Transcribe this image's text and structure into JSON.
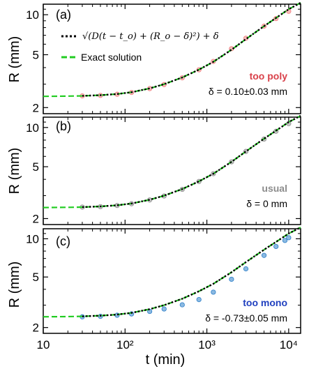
{
  "chart_data": [
    {
      "type": "scatter",
      "panel_label": "(a)",
      "ylabel": "R (mm)",
      "xscale": "log",
      "yscale": "log",
      "xlim": [
        10,
        14000
      ],
      "ylim": [
        1.8,
        12
      ],
      "yticks": [
        2,
        5,
        10
      ],
      "legend": {
        "placement": "top-left",
        "fit_label": "√(D(t − t_o) + (R_o − δ)²) + δ",
        "exact_label": "Exact solution"
      },
      "annotation_title": "too poly",
      "annotation_title_color": "#d9414a",
      "annotation_value": "δ = 0.10±0.03 mm",
      "marker_color": "#f08080",
      "series": [
        {
          "values": [
            [
              30,
              2.45
            ],
            [
              50,
              2.47
            ],
            [
              80,
              2.52
            ],
            [
              120,
              2.6
            ],
            [
              200,
              2.78
            ],
            [
              300,
              2.98
            ],
            [
              500,
              3.35
            ],
            [
              800,
              3.85
            ],
            [
              1200,
              4.45
            ],
            [
              2000,
              5.55
            ],
            [
              3000,
              6.65
            ],
            [
              5000,
              8.2
            ],
            [
              7000,
              9.35
            ],
            [
              10000,
              10.6
            ]
          ]
        }
      ],
      "fit_curve": {
        "x": [
          30,
          50,
          80,
          120,
          200,
          300,
          500,
          800,
          1200,
          2000,
          3000,
          5000,
          8000,
          10000,
          14000
        ],
        "y": [
          2.45,
          2.48,
          2.53,
          2.61,
          2.79,
          3.0,
          3.37,
          3.86,
          4.42,
          5.45,
          6.55,
          8.2,
          10.0,
          11.0,
          12.3
        ]
      },
      "exact_curve": {
        "x": [
          10,
          20,
          30,
          50,
          80,
          120,
          200,
          300,
          500,
          800,
          1200,
          2000,
          3000,
          5000,
          8000,
          10000,
          14000
        ],
        "y": [
          2.43,
          2.44,
          2.45,
          2.48,
          2.53,
          2.61,
          2.79,
          3.0,
          3.37,
          3.86,
          4.42,
          5.45,
          6.55,
          8.2,
          10.0,
          11.0,
          12.3
        ]
      }
    },
    {
      "type": "scatter",
      "panel_label": "(b)",
      "ylabel": "R (mm)",
      "xscale": "log",
      "yscale": "log",
      "xlim": [
        10,
        14000
      ],
      "ylim": [
        1.8,
        12
      ],
      "yticks": [
        2,
        5,
        10
      ],
      "annotation_title": "usual",
      "annotation_title_color": "#8c8c8c",
      "annotation_value": "δ = 0 mm",
      "marker_color": "#909090",
      "series": [
        {
          "values": [
            [
              30,
              2.45
            ],
            [
              50,
              2.47
            ],
            [
              80,
              2.52
            ],
            [
              120,
              2.6
            ],
            [
              200,
              2.78
            ],
            [
              300,
              2.98
            ],
            [
              500,
              3.35
            ],
            [
              800,
              3.85
            ],
            [
              1200,
              4.42
            ],
            [
              2000,
              5.45
            ],
            [
              3000,
              6.55
            ],
            [
              5000,
              8.15
            ],
            [
              7000,
              9.35
            ],
            [
              10000,
              10.7
            ]
          ]
        }
      ],
      "fit_curve": {
        "x": [
          30,
          50,
          80,
          120,
          200,
          300,
          500,
          800,
          1200,
          2000,
          3000,
          5000,
          8000,
          10000,
          14000
        ],
        "y": [
          2.45,
          2.48,
          2.53,
          2.61,
          2.79,
          3.0,
          3.37,
          3.86,
          4.42,
          5.45,
          6.55,
          8.2,
          10.0,
          11.0,
          12.3
        ]
      },
      "exact_curve": {
        "x": [
          10,
          20,
          30,
          50,
          80,
          120,
          200,
          300,
          500,
          800,
          1200,
          2000,
          3000,
          5000,
          8000,
          10000,
          14000
        ],
        "y": [
          2.43,
          2.44,
          2.45,
          2.48,
          2.53,
          2.61,
          2.79,
          3.0,
          3.37,
          3.86,
          4.42,
          5.45,
          6.55,
          8.2,
          10.0,
          11.0,
          12.3
        ]
      }
    },
    {
      "type": "scatter",
      "panel_label": "(c)",
      "ylabel": "R (mm)",
      "xlabel": "t (min)",
      "xscale": "log",
      "yscale": "log",
      "xlim": [
        10,
        14000
      ],
      "ylim": [
        1.8,
        12
      ],
      "yticks": [
        2,
        5,
        10
      ],
      "xticks": [
        "10",
        "10²",
        "10³",
        "10⁴"
      ],
      "annotation_title": "too mono",
      "annotation_title_color": "#1f3fbf",
      "annotation_value": "δ = -0.73±0.05 mm",
      "marker_color": "#2c7fc9",
      "series": [
        {
          "values": [
            [
              30,
              2.43
            ],
            [
              50,
              2.45
            ],
            [
              80,
              2.5
            ],
            [
              120,
              2.56
            ],
            [
              200,
              2.68
            ],
            [
              300,
              2.8
            ],
            [
              500,
              3.02
            ],
            [
              800,
              3.32
            ],
            [
              1200,
              3.8
            ],
            [
              2000,
              4.8
            ],
            [
              3000,
              5.8
            ],
            [
              5000,
              7.4
            ],
            [
              7000,
              8.7
            ],
            [
              9000,
              9.7
            ],
            [
              10000,
              10.2
            ]
          ]
        }
      ],
      "fit_curve": {
        "x": [
          30,
          50,
          80,
          120,
          200,
          300,
          500,
          800,
          1200,
          2000,
          3000,
          5000,
          8000,
          10000,
          14000
        ],
        "y": [
          2.45,
          2.48,
          2.53,
          2.61,
          2.79,
          3.0,
          3.37,
          3.86,
          4.42,
          5.45,
          6.55,
          8.2,
          10.0,
          11.0,
          12.3
        ]
      },
      "exact_curve": {
        "x": [
          10,
          20,
          30,
          50,
          80,
          120,
          200,
          300,
          500,
          800,
          1200,
          2000,
          3000,
          5000,
          8000,
          10000,
          14000
        ],
        "y": [
          2.43,
          2.44,
          2.45,
          2.48,
          2.53,
          2.61,
          2.79,
          3.0,
          3.37,
          3.86,
          4.42,
          5.45,
          6.55,
          8.2,
          10.0,
          11.0,
          12.3
        ]
      }
    }
  ]
}
